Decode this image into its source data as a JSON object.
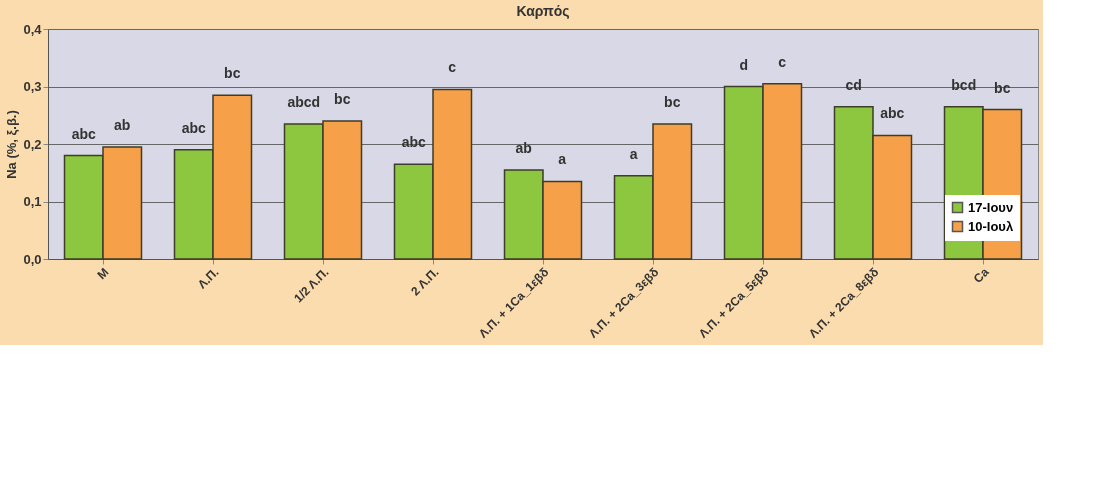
{
  "chart_data": {
    "type": "bar",
    "title": "Καρπός",
    "ylabel": "Na (%, ξ.β.)",
    "categories": [
      "M",
      "Λ.Π.",
      "1/2 Λ.Π.",
      "2 Λ.Π.",
      "Λ.Π. + 1Ca_1εβδ",
      "Λ.Π. + 2Ca_3εβδ",
      "Λ.Π. + 2Ca_5εβδ",
      "Λ.Π. + 2Ca_8εβδ",
      "Ca"
    ],
    "series": [
      {
        "name": "17-Ιουν",
        "color": "#8dc63f",
        "values": [
          0.18,
          0.19,
          0.235,
          0.165,
          0.155,
          0.145,
          0.3,
          0.265,
          0.265
        ]
      },
      {
        "name": "10-Ιουλ",
        "color": "#f7a04a",
        "values": [
          0.195,
          0.285,
          0.24,
          0.295,
          0.135,
          0.235,
          0.305,
          0.215,
          0.26
        ]
      }
    ],
    "ylim": [
      0,
      0.4
    ],
    "yticks": [
      {
        "value": 0,
        "label": "0,0"
      },
      {
        "value": 0.1,
        "label": "0,1"
      },
      {
        "value": 0.2,
        "label": "0,2"
      },
      {
        "value": 0.3,
        "label": "0,3"
      },
      {
        "value": 0.4,
        "label": "0,4"
      }
    ],
    "grid": "y",
    "legend": "bottom right",
    "annotations": [
      "abc",
      "ab",
      "abc",
      "bc",
      "abcd",
      "bc",
      "abc",
      "c",
      "ab",
      "a",
      "a",
      "bc",
      "d",
      "c",
      "cd",
      "abc",
      "bcd",
      "bc"
    ]
  }
}
